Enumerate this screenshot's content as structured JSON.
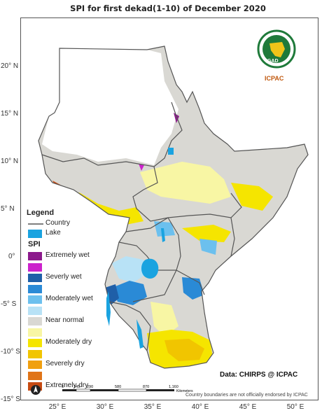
{
  "title": "SPI  for   first dekad(1-10)  of December 2020",
  "lat_ticks": [
    "20° N",
    "15° N",
    "10° N",
    "5° N",
    "0°",
    "-5° S",
    "-10° S",
    "-15° S"
  ],
  "lon_ticks": [
    "25° E",
    "30° E",
    "35° E",
    "40° E",
    "45° E",
    "50° E"
  ],
  "legend": {
    "title": "Legend",
    "country_label": "Country",
    "lake_label": "Lake",
    "spi_title": "SPI",
    "classes": [
      {
        "label": "Extremely wet",
        "color": "#8c1a8c"
      },
      {
        "label": "",
        "color": "#cc22cc"
      },
      {
        "label": "Severly wet",
        "color": "#1f5fa8"
      },
      {
        "label": "",
        "color": "#2a8ad6"
      },
      {
        "label": "Moderately wet",
        "color": "#6cc0ee"
      },
      {
        "label": "",
        "color": "#b8e2f6"
      },
      {
        "label": "Near normal",
        "color": "#d9d8d3"
      },
      {
        "label": "",
        "color": "#f8f6a4"
      },
      {
        "label": "Moderately dry",
        "color": "#f5e500"
      },
      {
        "label": "",
        "color": "#f1c500"
      },
      {
        "label": "Severely dry",
        "color": "#f0a010"
      },
      {
        "label": "",
        "color": "#e07418"
      },
      {
        "label": "Extremely dry",
        "color": "#c64a12"
      }
    ]
  },
  "source": "Data: CHIRPS @ ICPAC",
  "disclaimer": "Country boundaries are not officially endorsed by ICPAC",
  "logo": {
    "org": "IGAD",
    "center": "ICPAC"
  },
  "scalebar": {
    "labels": [
      "0",
      "145",
      "290",
      "580",
      "870",
      "1,160"
    ],
    "unit": "Kilometers"
  },
  "colors": {
    "lake": "#1aa3e0",
    "boundary": "#555555",
    "near_normal": "#d9d8d3",
    "igad_green": "#1f7a3a",
    "icpac_orange": "#c0580e"
  }
}
